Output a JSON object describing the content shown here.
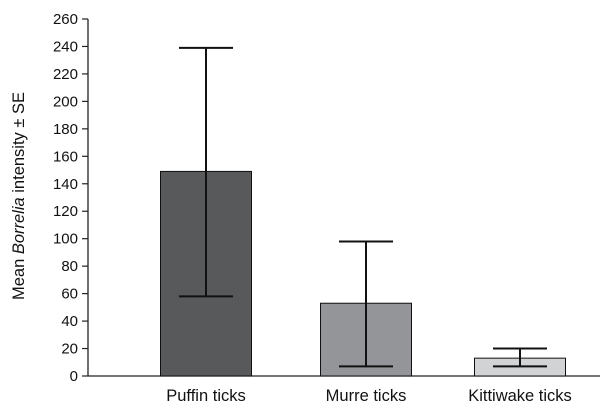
{
  "chart_data": {
    "type": "bar",
    "ylabel_parts": [
      "Mean ",
      "Borrelia",
      " intensity ± SE"
    ],
    "categories": [
      "Puffin ticks",
      "Murre ticks",
      "Kittiwake ticks"
    ],
    "values": [
      149,
      53,
      13
    ],
    "errors": [
      {
        "low": 58,
        "high": 239
      },
      {
        "low": 7,
        "high": 98
      },
      {
        "low": 7,
        "high": 20
      }
    ],
    "bar_colors": [
      "#58595b",
      "#939598",
      "#d1d3d4"
    ],
    "ylim": [
      0,
      260
    ],
    "yticks": [
      0,
      20,
      40,
      60,
      80,
      100,
      120,
      140,
      160,
      180,
      200,
      220,
      240,
      260
    ],
    "grid": false,
    "legend": "none"
  }
}
